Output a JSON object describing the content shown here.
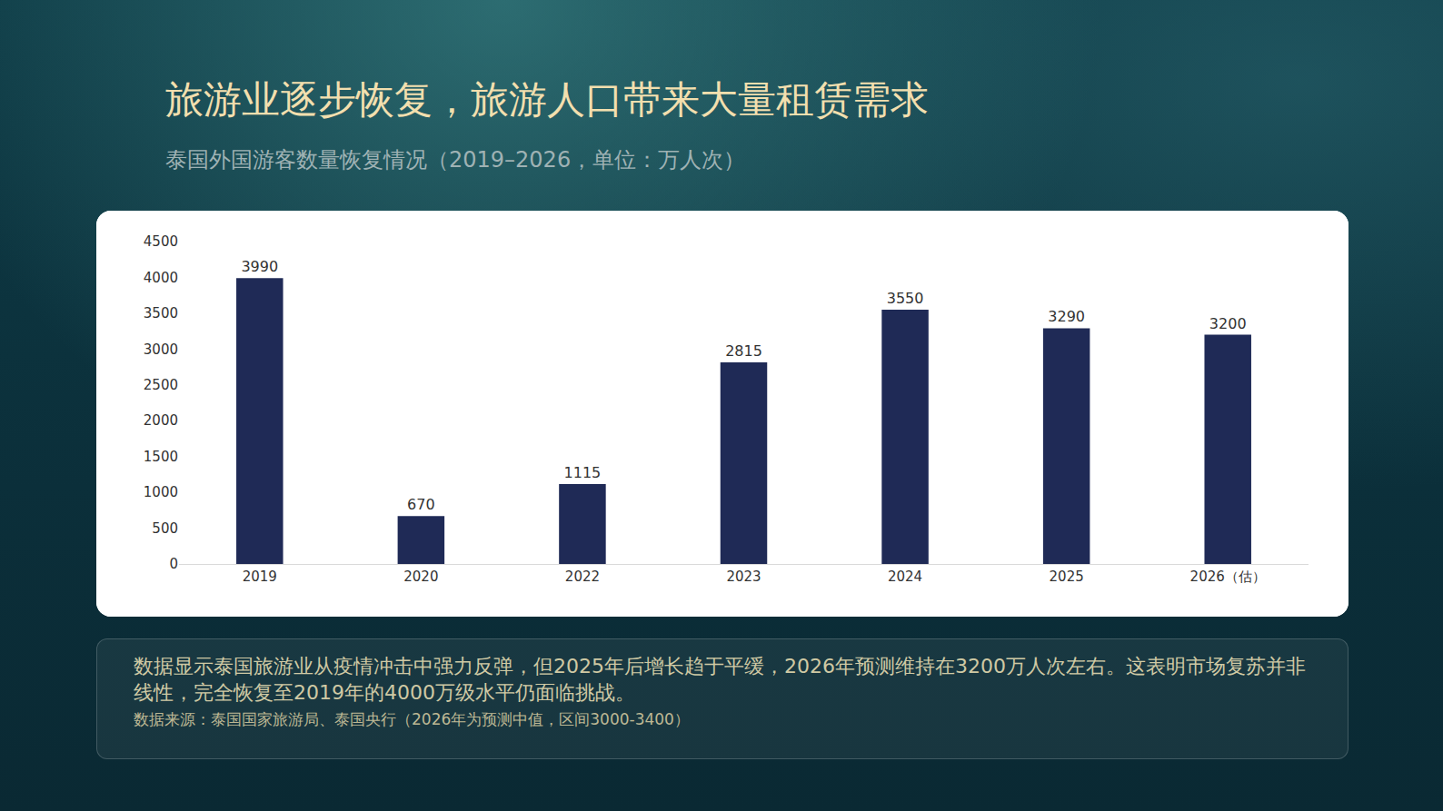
{
  "chart_data": {
    "type": "bar",
    "title": "旅游业逐步恢复，旅游人口带来大量租赁需求",
    "subtitle": "泰国外国游客数量恢复情况（2019–2026，单位：万人次）",
    "categories": [
      "2019",
      "2020",
      "2022",
      "2023",
      "2024",
      "2025",
      "2026（估）"
    ],
    "values": [
      3990,
      670,
      1115,
      2815,
      3550,
      3290,
      3200
    ],
    "color": "#1f2a56",
    "ylim": [
      0,
      4500
    ],
    "yticks": [
      0,
      500,
      1000,
      1500,
      2000,
      2500,
      3000,
      3500,
      4000,
      4500
    ],
    "grid": false,
    "data_labels": true
  },
  "note": {
    "summary": "数据显示泰国旅游业从疫情冲击中强力反弹，但2025年后增长趋于平缓，2026年预测维持在3200万人次左右。这表明市场复苏并非线性，完全恢复至2019年的4000万级水平仍面临挑战。",
    "source": "数据来源：泰国国家旅游局、泰国央行（2026年为预测中值，区间3000-3400）"
  }
}
